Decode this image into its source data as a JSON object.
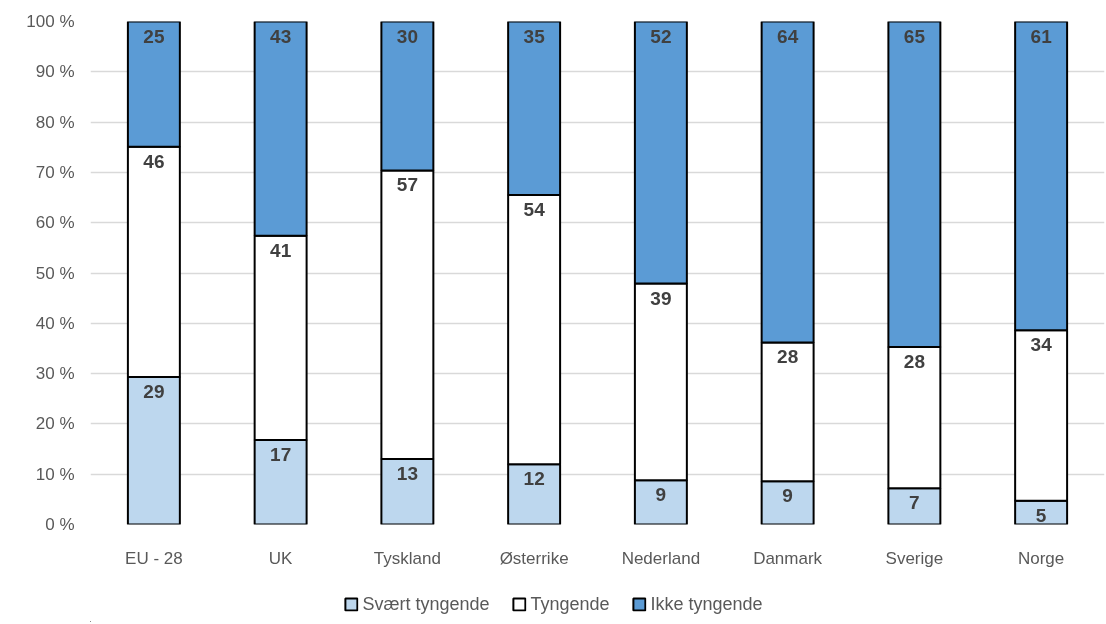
{
  "chart_data": {
    "type": "bar",
    "stacked": true,
    "categories": [
      "EU - 28",
      "UK",
      "Tyskland",
      "Østerrike",
      "Nederland",
      "Danmark",
      "Sverige",
      "Norge"
    ],
    "series": [
      {
        "name": "Svært tyngende",
        "color": "#bdd7ee",
        "values": [
          29.3,
          16.8,
          13,
          12,
          8.8,
          8.6,
          7.2,
          4.7
        ],
        "value_labels": [
          "29",
          "17",
          "13",
          "12",
          "9",
          "9",
          "7",
          "5"
        ]
      },
      {
        "name": "Tyngende",
        "color": "#ffffff",
        "values": [
          45.8,
          40.6,
          57.4,
          53.5,
          39.1,
          27.6,
          28.1,
          33.9
        ],
        "value_labels": [
          "46",
          "41",
          "57",
          "54",
          "39",
          "28",
          "28",
          "34"
        ]
      },
      {
        "name": "Ikke tyngende",
        "color": "#5b9bd5",
        "values": [
          24.9,
          42.6,
          29.6,
          34.5,
          52.1,
          63.8,
          64.7,
          61.4
        ],
        "value_labels": [
          "25",
          "43",
          "30",
          "35",
          "52",
          "64",
          "65",
          "61"
        ]
      }
    ],
    "ylim": [
      0,
      100
    ],
    "yticks": [
      {
        "value": 0,
        "label": "0 %"
      },
      {
        "value": 10,
        "label": "10 %"
      },
      {
        "value": 20,
        "label": "20 %"
      },
      {
        "value": 30,
        "label": "30 %"
      },
      {
        "value": 40,
        "label": "40 %"
      },
      {
        "value": 50,
        "label": "50 %"
      },
      {
        "value": 60,
        "label": "60 %"
      },
      {
        "value": 70,
        "label": "70 %"
      },
      {
        "value": 80,
        "label": "80 %"
      },
      {
        "value": 90,
        "label": "90 %"
      },
      {
        "value": 100,
        "label": "100 %"
      }
    ],
    "grid": "y",
    "legend": "bottom"
  }
}
